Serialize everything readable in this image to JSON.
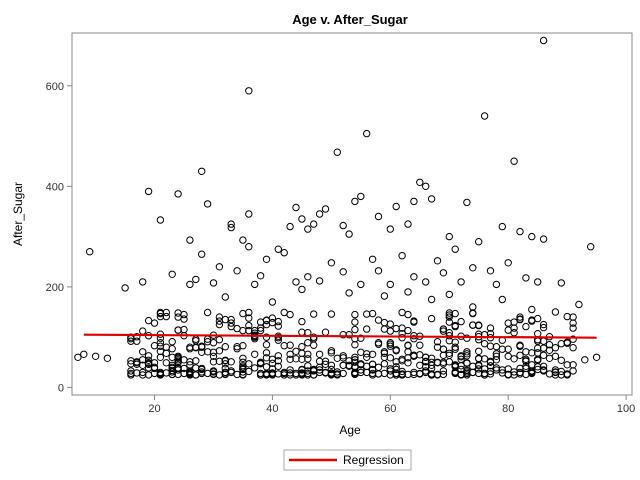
{
  "chart_data": {
    "type": "scatter",
    "title": "Age v. After_Sugar",
    "xlabel": "Age",
    "ylabel": "After_Sugar",
    "xlim": [
      6,
      101
    ],
    "ylim": [
      -15,
      705
    ],
    "xticks": [
      20,
      40,
      60,
      80,
      100
    ],
    "yticks": [
      0,
      200,
      400,
      600
    ],
    "grid": false,
    "legend_position": "bottom-center",
    "colors": {
      "points": "#000000",
      "regression": "#e00000",
      "frame": "#888888"
    },
    "regression": {
      "name": "Regression",
      "x": [
        8,
        95
      ],
      "y": [
        105,
        99
      ]
    },
    "outliers": [
      [
        9,
        270
      ],
      [
        15,
        198
      ],
      [
        19,
        390
      ],
      [
        21,
        333
      ],
      [
        24,
        385
      ],
      [
        26,
        293
      ],
      [
        28,
        430
      ],
      [
        29,
        365
      ],
      [
        33,
        325
      ],
      [
        33,
        318
      ],
      [
        35,
        293
      ],
      [
        36,
        590
      ],
      [
        36,
        345
      ],
      [
        36,
        280
      ],
      [
        41,
        275
      ],
      [
        43,
        320
      ],
      [
        44,
        358
      ],
      [
        45,
        335
      ],
      [
        46,
        315
      ],
      [
        47,
        325
      ],
      [
        48,
        345
      ],
      [
        49,
        355
      ],
      [
        51,
        468
      ],
      [
        52,
        322
      ],
      [
        53,
        305
      ],
      [
        54,
        370
      ],
      [
        55,
        380
      ],
      [
        56,
        505
      ],
      [
        58,
        340
      ],
      [
        60,
        315
      ],
      [
        61,
        360
      ],
      [
        63,
        325
      ],
      [
        64,
        370
      ],
      [
        65,
        408
      ],
      [
        66,
        400
      ],
      [
        67,
        375
      ],
      [
        70,
        300
      ],
      [
        73,
        368
      ],
      [
        75,
        290
      ],
      [
        76,
        540
      ],
      [
        79,
        320
      ],
      [
        81,
        450
      ],
      [
        82,
        310
      ],
      [
        84,
        300
      ],
      [
        86,
        690
      ],
      [
        86,
        295
      ],
      [
        94,
        280
      ],
      [
        28,
        265
      ],
      [
        31,
        240
      ],
      [
        39,
        255
      ],
      [
        42,
        268
      ],
      [
        50,
        248
      ],
      [
        57,
        255
      ],
      [
        62,
        262
      ],
      [
        68,
        252
      ],
      [
        71,
        275
      ],
      [
        74,
        238
      ],
      [
        80,
        248
      ],
      [
        23,
        225
      ],
      [
        27,
        215
      ],
      [
        34,
        232
      ],
      [
        38,
        222
      ],
      [
        46,
        220
      ],
      [
        52,
        230
      ],
      [
        58,
        232
      ],
      [
        64,
        220
      ],
      [
        69,
        228
      ],
      [
        77,
        232
      ],
      [
        83,
        218
      ],
      [
        89,
        208
      ],
      [
        18,
        210
      ],
      [
        26,
        205
      ],
      [
        30,
        208
      ],
      [
        37,
        205
      ],
      [
        44,
        210
      ],
      [
        48,
        212
      ],
      [
        55,
        205
      ],
      [
        60,
        205
      ],
      [
        66,
        210
      ],
      [
        72,
        210
      ],
      [
        78,
        205
      ],
      [
        85,
        210
      ],
      [
        92,
        165
      ],
      [
        20,
        128
      ],
      [
        25,
        145
      ],
      [
        32,
        180
      ],
      [
        40,
        170
      ],
      [
        45,
        195
      ],
      [
        53,
        188
      ],
      [
        59,
        182
      ],
      [
        63,
        190
      ],
      [
        67,
        175
      ],
      [
        70,
        185
      ],
      [
        74,
        160
      ],
      [
        79,
        175
      ],
      [
        84,
        155
      ],
      [
        88,
        150
      ],
      [
        91,
        140
      ],
      [
        12,
        58
      ],
      [
        10,
        62
      ],
      [
        8,
        66
      ],
      [
        7,
        60
      ],
      [
        93,
        55
      ],
      [
        95,
        60
      ],
      [
        90,
        90
      ],
      [
        87,
        85
      ]
    ],
    "cluster": {
      "x_range": [
        16,
        91
      ],
      "y_range": [
        25,
        150
      ],
      "count": 600,
      "seed": 7
    }
  },
  "legend": {
    "label": "Regression"
  }
}
